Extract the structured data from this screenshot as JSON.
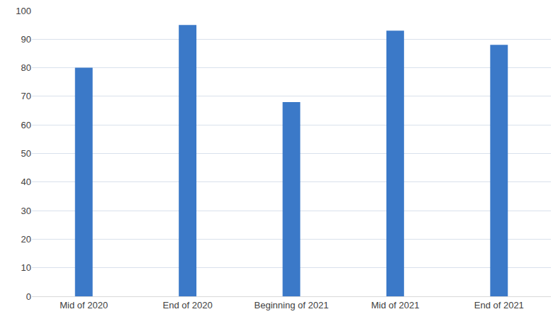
{
  "chart_data": {
    "type": "bar",
    "categories": [
      "Mid of 2020",
      "End of 2020",
      "Beginning of 2021",
      "Mid of 2021",
      "End of 2021"
    ],
    "values": [
      80,
      95,
      68,
      93,
      88
    ],
    "color": "#3b79c8",
    "ylim": [
      0,
      100
    ],
    "yticks": [
      0,
      10,
      20,
      30,
      40,
      50,
      60,
      70,
      80,
      90,
      100
    ],
    "grid": true
  }
}
